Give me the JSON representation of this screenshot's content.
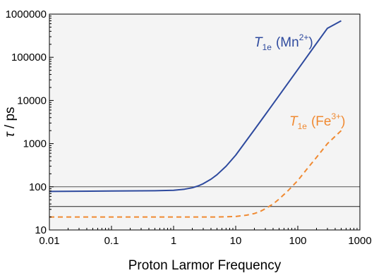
{
  "chart_data": {
    "type": "line",
    "xlabel": "Proton Larmor Frequency",
    "ylabel_symbol": "τ",
    "ylabel_unit": " / ps",
    "xscale": "log",
    "yscale": "log",
    "xlim": [
      0.01,
      1000
    ],
    "ylim": [
      10,
      1000000
    ],
    "xticks": [
      {
        "value": 0.01,
        "label": "0.01"
      },
      {
        "value": 0.1,
        "label": "0.1"
      },
      {
        "value": 1,
        "label": "1"
      },
      {
        "value": 10,
        "label": "10"
      },
      {
        "value": 100,
        "label": "100"
      },
      {
        "value": 1000,
        "label": "1000"
      }
    ],
    "yticks": [
      {
        "value": 10,
        "label": "10"
      },
      {
        "value": 100,
        "label": "100"
      },
      {
        "value": 1000,
        "label": "1000"
      },
      {
        "value": 10000,
        "label": "10000"
      },
      {
        "value": 100000,
        "label": "100000"
      },
      {
        "value": 1000000,
        "label": "1000000"
      }
    ],
    "grid": false,
    "series": [
      {
        "label_T": "T",
        "label_sub": "1e",
        "label_open": "(Mn",
        "label_sup": "2+",
        "label_close": ")",
        "color": "#2e4a9e",
        "style": "solid",
        "x": [
          0.01,
          0.1,
          0.5,
          1,
          1.5,
          2,
          2.5,
          3,
          4,
          5,
          7,
          10,
          20,
          30,
          50,
          100,
          200,
          300,
          500
        ],
        "y": [
          78,
          80,
          81,
          83,
          88,
          95,
          105,
          118,
          150,
          190,
          300,
          540,
          2100,
          4700,
          13000,
          52000,
          210000,
          470000,
          700000
        ]
      },
      {
        "label_T": "T",
        "label_sub": "1e",
        "label_open": "(Fe",
        "label_sup": "3+",
        "label_close": ")",
        "color": "#f08a32",
        "style": "dashed",
        "x": [
          0.01,
          0.1,
          1,
          5,
          10,
          15,
          20,
          25,
          30,
          40,
          50,
          70,
          100,
          150,
          200,
          300,
          500
        ],
        "y": [
          20,
          20,
          20,
          20,
          20.5,
          22,
          24,
          27,
          31,
          40,
          52,
          82,
          140,
          290,
          480,
          1000,
          2000
        ]
      }
    ],
    "reference_lines": [
      {
        "y": 100,
        "color": "#555555"
      },
      {
        "y": 35,
        "color": "#222222"
      }
    ]
  }
}
